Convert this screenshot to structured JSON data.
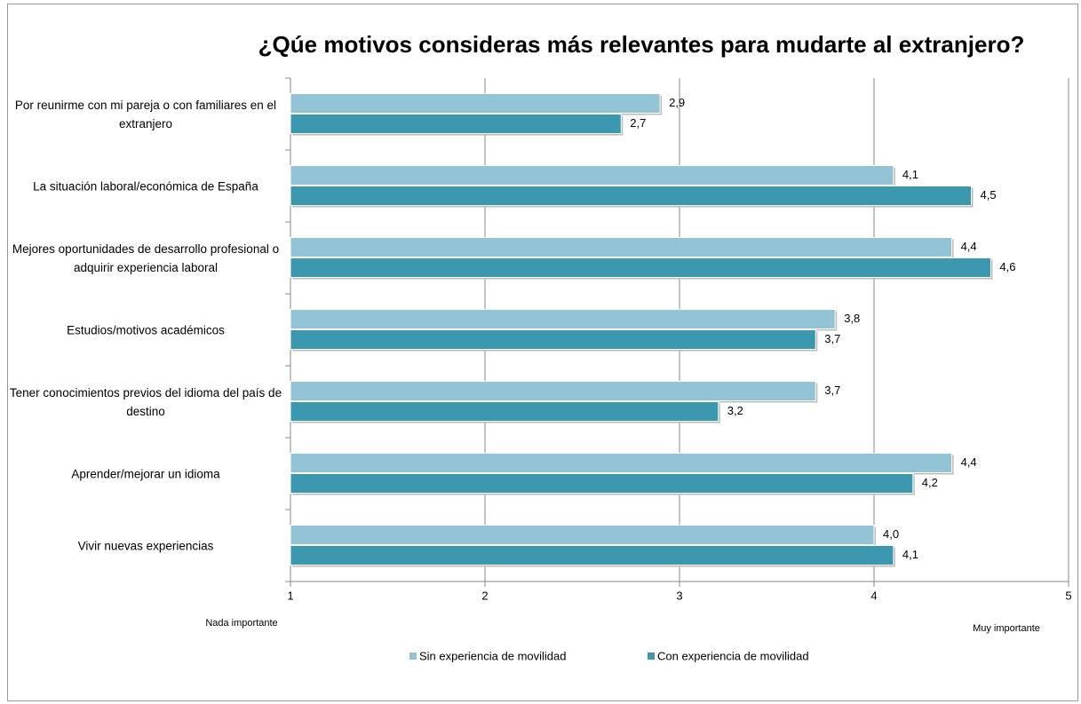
{
  "chart_data": {
    "type": "barh",
    "title": "¿Qúe motivos consideras más relevantes para mudarte al extranjero?",
    "categories": [
      "Por reunirme con mi pareja o con familiares en el extranjero",
      "La situación laboral/económica de España",
      "Mejores oportunidades de desarrollo profesional o adquirir experiencia laboral",
      "Estudios/motivos académicos",
      "Tener conocimientos previos del idioma del país de destino",
      "Aprender/mejorar un idioma",
      "Vivir nuevas experiencias"
    ],
    "series": [
      {
        "name": "Sin experiencia de movilidad",
        "color": "#93c4d5",
        "values": [
          2.9,
          4.1,
          4.4,
          3.8,
          3.7,
          4.4,
          4.0
        ],
        "value_labels": [
          "2,9",
          "4,1",
          "4,4",
          "3,8",
          "3,7",
          "4,4",
          "4,0"
        ]
      },
      {
        "name": "Con experiencia de movilidad",
        "color": "#3b98af",
        "values": [
          2.7,
          4.5,
          4.6,
          3.7,
          3.2,
          4.2,
          4.1
        ],
        "value_labels": [
          "2,7",
          "4,5",
          "4,6",
          "3,7",
          "3,2",
          "4,2",
          "4,1"
        ]
      }
    ],
    "xlim": [
      1,
      5
    ],
    "xticks": [
      1,
      2,
      3,
      4,
      5
    ],
    "grid": true,
    "annotations": [
      "Nada importante",
      "Muy importante"
    ],
    "legend": "bottom"
  }
}
